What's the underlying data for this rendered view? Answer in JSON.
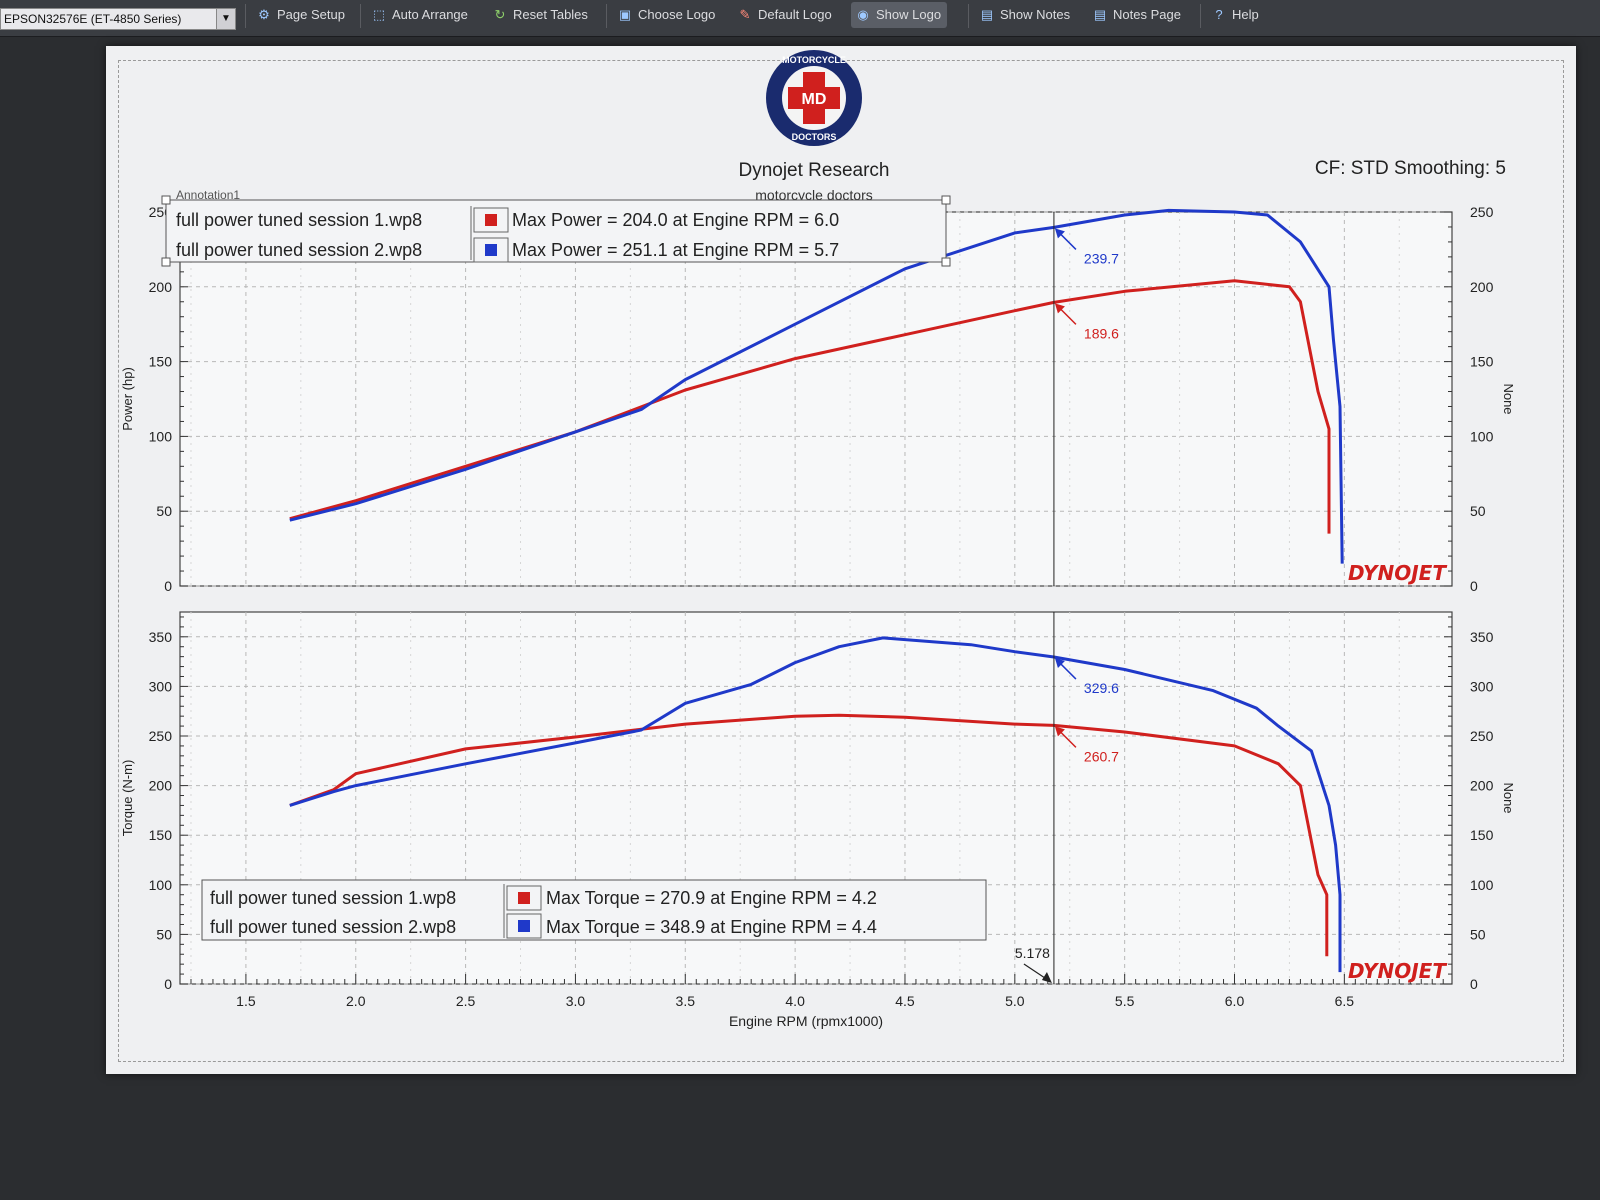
{
  "toolbar": {
    "printer": "EPSON32576E (ET-4850 Series)",
    "buttons": [
      {
        "label": "Page Setup",
        "icon": "page-setup-icon"
      },
      {
        "label": "Auto Arrange",
        "icon": "auto-arrange-icon"
      },
      {
        "label": "Reset Tables",
        "icon": "reset-tables-icon"
      },
      {
        "label": "Choose Logo",
        "icon": "choose-logo-icon"
      },
      {
        "label": "Default Logo",
        "icon": "default-logo-icon"
      },
      {
        "label": "Show Logo",
        "icon": "eye-icon"
      },
      {
        "label": "Show Notes",
        "icon": "notes-icon"
      },
      {
        "label": "Notes Page",
        "icon": "notes-page-icon"
      },
      {
        "label": "Help",
        "icon": "help-icon"
      }
    ]
  },
  "header": {
    "logo_text_top": "MOTORCYCLE",
    "logo_text_center": "MD",
    "logo_text_bottom": "DOCTORS",
    "title": "Dynojet Research",
    "subtitle": "motorcycle doctors",
    "cf_text": "CF: STD Smoothing: 5",
    "annotation_label": "Annotation1",
    "brand": "DYNOJET"
  },
  "colors": {
    "session1": "#d0201e",
    "session2": "#1f39c9"
  },
  "cursor": {
    "x": 5.178,
    "x_label": "5.178"
  },
  "power_legend": [
    {
      "file": "full power tuned session 1.wp8",
      "text": "Max Power = 204.0 at Engine RPM = 6.0"
    },
    {
      "file": "full power tuned session 2.wp8",
      "text": "Max Power = 251.1 at Engine RPM = 5.7"
    }
  ],
  "torque_legend": [
    {
      "file": "full power tuned session 1.wp8",
      "text": "Max Torque = 270.9 at Engine RPM = 4.2"
    },
    {
      "file": "full power tuned session 2.wp8",
      "text": "Max Torque = 348.9 at Engine RPM = 4.4"
    }
  ],
  "chart_data": [
    {
      "type": "line",
      "ylabel": "Power (hp)",
      "right_label": "None",
      "xlim": [
        1.2,
        6.99
      ],
      "ylim": [
        0,
        250
      ],
      "yticks": [
        0,
        50,
        100,
        150,
        200,
        250
      ],
      "series": [
        {
          "name": "full power tuned session 1.wp8",
          "cursor_value": "189.6",
          "points": [
            [
              1.7,
              45
            ],
            [
              2.0,
              57
            ],
            [
              2.5,
              80
            ],
            [
              3.0,
              103
            ],
            [
              3.5,
              131
            ],
            [
              4.0,
              152
            ],
            [
              4.5,
              168
            ],
            [
              5.0,
              184
            ],
            [
              5.178,
              189.6
            ],
            [
              5.5,
              197
            ],
            [
              6.0,
              204
            ],
            [
              6.25,
              200
            ],
            [
              6.3,
              190
            ],
            [
              6.38,
              130
            ],
            [
              6.43,
              105
            ],
            [
              6.43,
              35
            ]
          ]
        },
        {
          "name": "full power tuned session 2.wp8",
          "cursor_value": "239.7",
          "points": [
            [
              1.7,
              44
            ],
            [
              2.0,
              55
            ],
            [
              2.5,
              78
            ],
            [
              3.0,
              103
            ],
            [
              3.3,
              118
            ],
            [
              3.5,
              138
            ],
            [
              4.0,
              175
            ],
            [
              4.5,
              212
            ],
            [
              5.0,
              236
            ],
            [
              5.178,
              239.7
            ],
            [
              5.5,
              248
            ],
            [
              5.7,
              251.1
            ],
            [
              6.0,
              250
            ],
            [
              6.15,
              248
            ],
            [
              6.3,
              230
            ],
            [
              6.43,
              200
            ],
            [
              6.45,
              165
            ],
            [
              6.48,
              120
            ],
            [
              6.49,
              15
            ]
          ]
        }
      ]
    },
    {
      "type": "line",
      "ylabel": "Torque (N-m)",
      "xlabel": "Engine RPM (rpmx1000)",
      "right_label": "None",
      "xlim": [
        1.2,
        6.99
      ],
      "ylim": [
        0,
        375
      ],
      "yticks": [
        0,
        50,
        100,
        150,
        200,
        250,
        300,
        350
      ],
      "xticks": [
        1.5,
        2.0,
        2.5,
        3.0,
        3.5,
        4.0,
        4.5,
        5.0,
        5.5,
        6.0,
        6.5
      ],
      "xtick_labels": [
        "1.5",
        "2.0",
        "2.5",
        "3.0",
        "3.5",
        "4.0",
        "4.5",
        "5.0",
        "5.5",
        "6.0",
        "6.5"
      ],
      "series": [
        {
          "name": "full power tuned session 1.wp8",
          "cursor_value": "260.7",
          "points": [
            [
              1.7,
              180
            ],
            [
              1.9,
              196
            ],
            [
              2.0,
              212
            ],
            [
              2.5,
              237
            ],
            [
              3.0,
              249
            ],
            [
              3.5,
              262
            ],
            [
              4.0,
              270
            ],
            [
              4.2,
              270.9
            ],
            [
              4.5,
              269
            ],
            [
              5.0,
              262
            ],
            [
              5.178,
              260.7
            ],
            [
              5.5,
              254
            ],
            [
              6.0,
              240
            ],
            [
              6.2,
              222
            ],
            [
              6.3,
              200
            ],
            [
              6.38,
              110
            ],
            [
              6.42,
              90
            ],
            [
              6.42,
              28
            ]
          ]
        },
        {
          "name": "full power tuned session 2.wp8",
          "cursor_value": "329.6",
          "points": [
            [
              1.7,
              180
            ],
            [
              1.9,
              194
            ],
            [
              2.0,
              200
            ],
            [
              2.5,
              222
            ],
            [
              3.0,
              243
            ],
            [
              3.3,
              256
            ],
            [
              3.5,
              283
            ],
            [
              3.8,
              302
            ],
            [
              4.0,
              324
            ],
            [
              4.2,
              340
            ],
            [
              4.4,
              348.9
            ],
            [
              4.8,
              342
            ],
            [
              5.0,
              335
            ],
            [
              5.178,
              329.6
            ],
            [
              5.5,
              317
            ],
            [
              5.9,
              296
            ],
            [
              6.1,
              278
            ],
            [
              6.2,
              260
            ],
            [
              6.35,
              235
            ],
            [
              6.43,
              180
            ],
            [
              6.46,
              140
            ],
            [
              6.48,
              90
            ],
            [
              6.48,
              12
            ]
          ]
        }
      ]
    }
  ]
}
